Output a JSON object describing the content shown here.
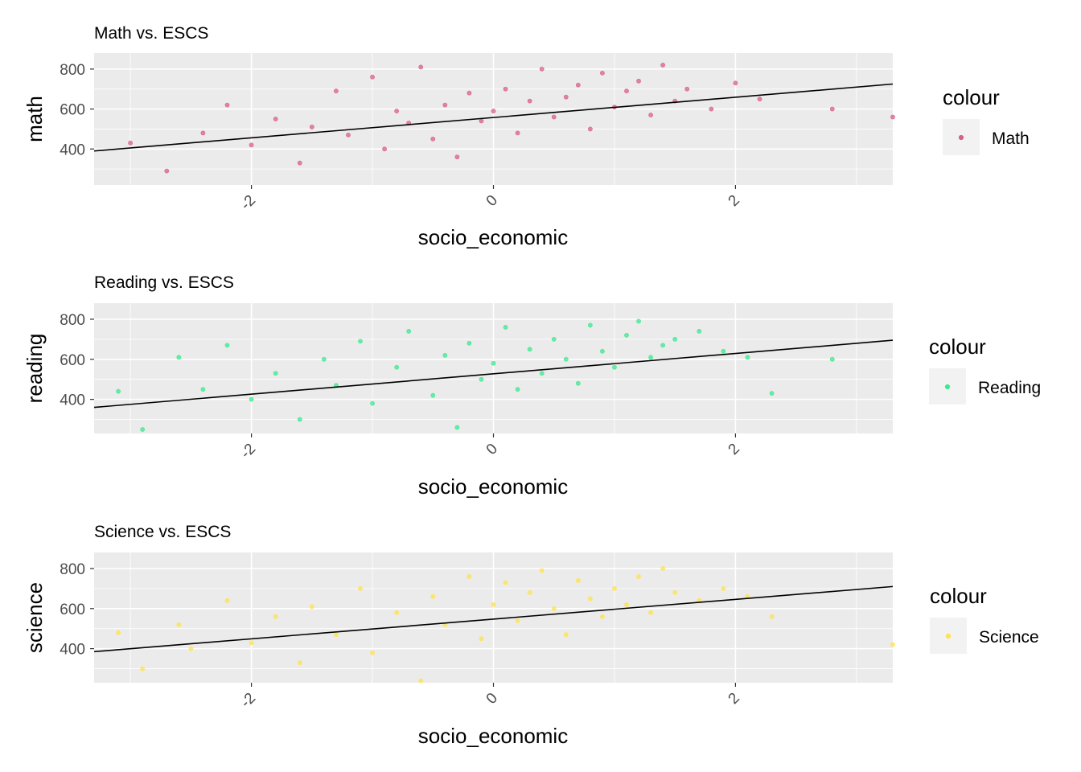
{
  "chart_data": [
    {
      "type": "scatter",
      "title": "Math vs. ESCS",
      "xlabel": "socio_economic",
      "ylabel": "math",
      "xlim": [
        -3.3,
        3.3
      ],
      "ylim": [
        220,
        880
      ],
      "x_ticks": [
        -2,
        0,
        2
      ],
      "x_tick_labels": [
        "-2",
        "0",
        "2"
      ],
      "y_ticks": [
        400,
        600,
        800
      ],
      "y_tick_labels": [
        "400",
        "600",
        "800"
      ],
      "grid": true,
      "point_color": "#d95f87",
      "series": [
        {
          "name": "Math",
          "x": [
            -3.0,
            -2.7,
            -2.4,
            -2.2,
            -2.0,
            -1.8,
            -1.6,
            -1.5,
            -1.3,
            -1.2,
            -1.0,
            -0.9,
            -0.8,
            -0.7,
            -0.6,
            -0.5,
            -0.4,
            -0.3,
            -0.2,
            -0.1,
            0.0,
            0.1,
            0.2,
            0.3,
            0.4,
            0.5,
            0.6,
            0.7,
            0.8,
            0.9,
            1.0,
            1.1,
            1.2,
            1.3,
            1.4,
            1.5,
            1.6,
            1.8,
            2.0,
            2.2,
            2.8,
            3.3
          ],
          "y": [
            430,
            290,
            480,
            620,
            420,
            550,
            330,
            510,
            690,
            470,
            760,
            400,
            590,
            530,
            810,
            450,
            620,
            360,
            680,
            540,
            590,
            700,
            480,
            640,
            800,
            560,
            660,
            720,
            500,
            780,
            610,
            690,
            740,
            570,
            820,
            640,
            700,
            600,
            730,
            650,
            600,
            560
          ]
        }
      ],
      "trend_line": {
        "x": [
          -3.3,
          3.3
        ],
        "y": [
          390,
          725
        ]
      },
      "legend": {
        "title": "colour",
        "entries": [
          "Math"
        ],
        "position": "right"
      }
    },
    {
      "type": "scatter",
      "title": "Reading vs. ESCS",
      "xlabel": "socio_economic",
      "ylabel": "reading",
      "xlim": [
        -3.3,
        3.3
      ],
      "ylim": [
        230,
        880
      ],
      "x_ticks": [
        -2,
        0,
        2
      ],
      "x_tick_labels": [
        "-2",
        "0",
        "2"
      ],
      "y_ticks": [
        400,
        600,
        800
      ],
      "y_tick_labels": [
        "400",
        "600",
        "800"
      ],
      "grid": true,
      "point_color": "#3bea8f",
      "series": [
        {
          "name": "Reading",
          "x": [
            -3.1,
            -2.9,
            -2.6,
            -2.4,
            -2.2,
            -2.0,
            -1.8,
            -1.6,
            -1.4,
            -1.3,
            -1.1,
            -1.0,
            -0.8,
            -0.7,
            -0.5,
            -0.4,
            -0.3,
            -0.2,
            -0.1,
            0.0,
            0.1,
            0.2,
            0.3,
            0.4,
            0.5,
            0.6,
            0.7,
            0.8,
            0.9,
            1.0,
            1.1,
            1.2,
            1.3,
            1.4,
            1.5,
            1.7,
            1.9,
            2.1,
            2.3,
            2.8
          ],
          "y": [
            440,
            250,
            610,
            450,
            670,
            400,
            530,
            300,
            600,
            470,
            690,
            380,
            560,
            740,
            420,
            620,
            260,
            680,
            500,
            580,
            760,
            450,
            650,
            530,
            700,
            600,
            480,
            770,
            640,
            560,
            720,
            790,
            610,
            670,
            700,
            740,
            640,
            610,
            430,
            600
          ]
        }
      ],
      "trend_line": {
        "x": [
          -3.3,
          3.3
        ],
        "y": [
          360,
          695
        ]
      },
      "legend": {
        "title": "colour",
        "entries": [
          "Reading"
        ],
        "position": "right"
      }
    },
    {
      "type": "scatter",
      "title": "Science vs. ESCS",
      "xlabel": "socio_economic",
      "ylabel": "science",
      "xlim": [
        -3.3,
        3.3
      ],
      "ylim": [
        230,
        880
      ],
      "x_ticks": [
        -2,
        0,
        2
      ],
      "x_tick_labels": [
        "-2",
        "0",
        "2"
      ],
      "y_ticks": [
        400,
        600,
        800
      ],
      "y_tick_labels": [
        "400",
        "600",
        "800"
      ],
      "grid": true,
      "point_color": "#fde34c",
      "series": [
        {
          "name": "Science",
          "x": [
            -3.1,
            -2.9,
            -2.6,
            -2.5,
            -2.2,
            -2.0,
            -1.8,
            -1.6,
            -1.5,
            -1.3,
            -1.1,
            -1.0,
            -0.8,
            -0.6,
            -0.5,
            -0.4,
            -0.2,
            -0.1,
            0.0,
            0.1,
            0.2,
            0.3,
            0.4,
            0.5,
            0.6,
            0.7,
            0.8,
            0.9,
            1.0,
            1.1,
            1.2,
            1.3,
            1.4,
            1.5,
            1.7,
            1.9,
            2.1,
            2.3,
            3.3
          ],
          "y": [
            480,
            300,
            520,
            400,
            640,
            430,
            560,
            330,
            610,
            470,
            700,
            380,
            580,
            240,
            660,
            520,
            760,
            450,
            620,
            730,
            540,
            680,
            790,
            600,
            470,
            740,
            650,
            560,
            700,
            620,
            760,
            580,
            800,
            680,
            640,
            700,
            660,
            560,
            420
          ]
        }
      ],
      "trend_line": {
        "x": [
          -3.3,
          3.3
        ],
        "y": [
          385,
          710
        ]
      },
      "legend": {
        "title": "colour",
        "entries": [
          "Science"
        ],
        "position": "right"
      }
    }
  ]
}
